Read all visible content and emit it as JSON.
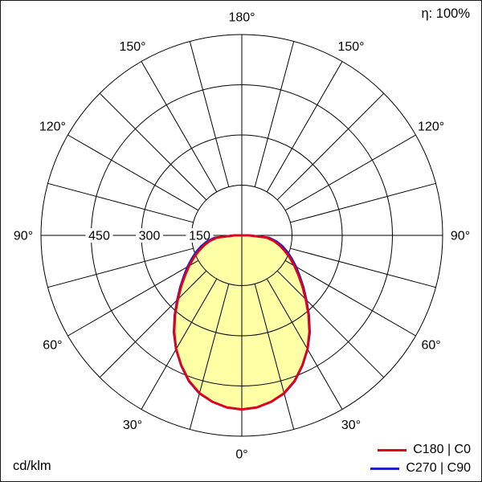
{
  "header": {
    "efficiency_label": "η: 100%"
  },
  "footer": {
    "unit_label": "cd/klm"
  },
  "legend": [
    {
      "label": "C180 | C0",
      "color": "#e2001a"
    },
    {
      "label": "C270 | C90",
      "color": "#2020cc"
    }
  ],
  "chart_data": {
    "type": "line",
    "polar": true,
    "unit": "cd/klm",
    "efficiency": "100%",
    "fill_color": "#ffffa6",
    "grid_color": "#000000",
    "radial_ticks": [
      150,
      300,
      450
    ],
    "radial_max": 600,
    "angle_step_deg": 15,
    "angle_labels_deg": [
      0,
      30,
      60,
      90,
      120,
      150,
      180
    ],
    "gamma_deg": [
      0,
      5,
      10,
      15,
      20,
      25,
      30,
      35,
      40,
      45,
      50,
      55,
      60,
      65,
      70,
      75,
      80,
      85,
      90
    ],
    "series": [
      {
        "name": "C180 | C0",
        "color": "#e2001a",
        "values": [
          520,
          516,
          505,
          488,
          462,
          428,
          392,
          352,
          310,
          270,
          236,
          206,
          181,
          158,
          137,
          117,
          97,
          74,
          20
        ]
      },
      {
        "name": "C270 | C90",
        "color": "#2020cc",
        "values": [
          520,
          516,
          505,
          489,
          463,
          429,
          393,
          354,
          312,
          273,
          240,
          211,
          187,
          165,
          145,
          126,
          106,
          82,
          24
        ]
      }
    ]
  }
}
